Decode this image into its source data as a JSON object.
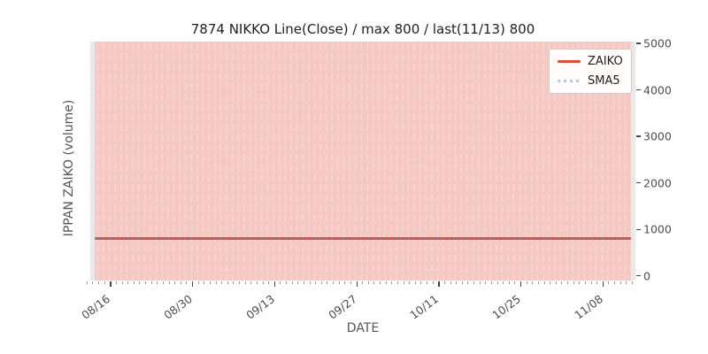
{
  "figure": {
    "title": "7874 NIKKO Line(Close) / max 800 / last(11/13) 800",
    "xlabel": "DATE",
    "ylabel": "IPPAN ZAIKO (volume)"
  },
  "legend": {
    "position": "upper right",
    "items": [
      {
        "label": "ZAIKO",
        "style": "solid",
        "color": "#d8503b"
      },
      {
        "label": "SMA5",
        "style": "dotted",
        "color": "#a9cfe5"
      }
    ]
  },
  "chart_data": {
    "type": "line",
    "title": "7874 NIKKO Line(Close) / max 800 / last(11/13) 800",
    "xlabel": "DATE",
    "ylabel": "IPPAN ZAIKO (volume)",
    "x_tick_labels": [
      "08/16",
      "08/30",
      "09/13",
      "09/27",
      "10/11",
      "10/25",
      "11/08"
    ],
    "x_major_tick_interval_days": 14,
    "x_minor_tick_interval_days": 1,
    "y_ticks": [
      0,
      1000,
      2000,
      3000,
      4000,
      5000
    ],
    "ylim": [
      0,
      5000
    ],
    "y_axis_side": "right",
    "grid": "vertical dashed per-day bands",
    "series": [
      {
        "name": "ZAIKO",
        "style": "solid",
        "color": "#d8503b",
        "constant_value": 800
      },
      {
        "name": "SMA5",
        "style": "dotted",
        "color": "#a9cfe5",
        "constant_value": 800
      }
    ],
    "max_value": 800,
    "last_point": {
      "date": "11/13",
      "value": 800
    }
  },
  "colors": {
    "plot_margin_bg": "#e9e9ea",
    "band_pink": "#f5c8c1",
    "band_dash": "#f9dad5",
    "zaiko_line": "#d8503b",
    "sma5_legend": "#a9cfe5",
    "sma5_overlay_dot": "#76818f",
    "tick_label": "#4d4d4d"
  }
}
